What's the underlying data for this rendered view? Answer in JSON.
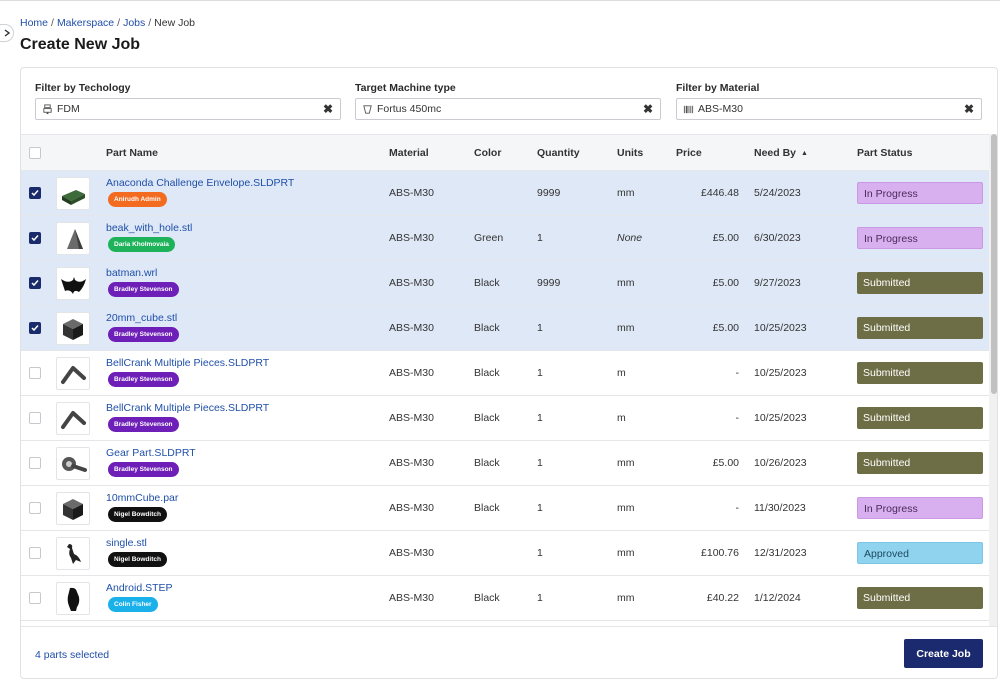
{
  "breadcrumb": {
    "home": "Home",
    "makerspace": "Makerspace",
    "jobs": "Jobs",
    "current": "New Job",
    "sep": "/"
  },
  "title": "Create New Job",
  "filters": [
    {
      "label": "Filter by Techology",
      "value": "FDM",
      "icon": "technology-icon"
    },
    {
      "label": "Target Machine type",
      "value": "Fortus 450mc",
      "icon": "machine-icon"
    },
    {
      "label": "Filter by Material",
      "value": "ABS-M30",
      "icon": "material-barcode-icon"
    }
  ],
  "clear_glyph": "✖",
  "columns": {
    "part_name": "Part Name",
    "material": "Material",
    "color": "Color",
    "quantity": "Quantity",
    "units": "Units",
    "price": "Price",
    "need_by": "Need By",
    "part_status": "Part Status"
  },
  "sort_arrow": "▲",
  "rows": [
    {
      "name": "Anaconda Challenge Envelope.SLDPRT",
      "owner": "Anirudh Admin",
      "owner_color": "#f26b21",
      "material": "ABS-M30",
      "color": "",
      "quantity": "9999",
      "units": "mm",
      "price": "£446.48",
      "need_by": "5/24/2023",
      "status": "In Progress",
      "status_type": "progress",
      "selected": true,
      "thumb": "envelope-thumb-icon"
    },
    {
      "name": "beak_with_hole.stl",
      "owner": "Daria Kholmovaia",
      "owner_color": "#1eb35a",
      "material": "ABS-M30",
      "color": "Green",
      "quantity": "1",
      "units": "None",
      "price": "£5.00",
      "need_by": "6/30/2023",
      "status": "In Progress",
      "status_type": "progress",
      "selected": true,
      "thumb": "beak-thumb-icon"
    },
    {
      "name": "batman.wrl",
      "owner": "Bradley Stevenson",
      "owner_color": "#6d1fb8",
      "material": "ABS-M30",
      "color": "Black",
      "quantity": "9999",
      "units": "mm",
      "price": "£5.00",
      "need_by": "9/27/2023",
      "status": "Submitted",
      "status_type": "submitted",
      "selected": true,
      "thumb": "batman-thumb-icon"
    },
    {
      "name": "20mm_cube.stl",
      "owner": "Bradley Stevenson",
      "owner_color": "#6d1fb8",
      "material": "ABS-M30",
      "color": "Black",
      "quantity": "1",
      "units": "mm",
      "price": "£5.00",
      "need_by": "10/25/2023",
      "status": "Submitted",
      "status_type": "submitted",
      "selected": true,
      "thumb": "cube-thumb-icon"
    },
    {
      "name": "BellCrank Multiple Pieces.SLDPRT",
      "owner": "Bradley Stevenson",
      "owner_color": "#6d1fb8",
      "material": "ABS-M30",
      "color": "Black",
      "quantity": "1",
      "units": "m",
      "price": "-",
      "need_by": "10/25/2023",
      "status": "Submitted",
      "status_type": "submitted",
      "selected": false,
      "thumb": "bellcrank-thumb-icon"
    },
    {
      "name": "BellCrank Multiple Pieces.SLDPRT",
      "owner": "Bradley Stevenson",
      "owner_color": "#6d1fb8",
      "material": "ABS-M30",
      "color": "Black",
      "quantity": "1",
      "units": "m",
      "price": "-",
      "need_by": "10/25/2023",
      "status": "Submitted",
      "status_type": "submitted",
      "selected": false,
      "thumb": "bellcrank-thumb-icon"
    },
    {
      "name": "Gear Part.SLDPRT",
      "owner": "Bradley Stevenson",
      "owner_color": "#6d1fb8",
      "material": "ABS-M30",
      "color": "Black",
      "quantity": "1",
      "units": "mm",
      "price": "£5.00",
      "need_by": "10/26/2023",
      "status": "Submitted",
      "status_type": "submitted",
      "selected": false,
      "thumb": "gear-thumb-icon"
    },
    {
      "name": "10mmCube.par",
      "owner": "Nigel Bowditch",
      "owner_color": "#111111",
      "material": "ABS-M30",
      "color": "Black",
      "quantity": "1",
      "units": "mm",
      "price": "-",
      "need_by": "11/30/2023",
      "status": "In Progress",
      "status_type": "progress",
      "selected": false,
      "thumb": "cube-thumb-icon"
    },
    {
      "name": "single.stl",
      "owner": "Nigel Bowditch",
      "owner_color": "#111111",
      "material": "ABS-M30",
      "color": "",
      "quantity": "1",
      "units": "mm",
      "price": "£100.76",
      "need_by": "12/31/2023",
      "status": "Approved",
      "status_type": "approved",
      "selected": false,
      "thumb": "bird-thumb-icon"
    },
    {
      "name": "Android.STEP",
      "owner": "Colin Fisher",
      "owner_color": "#1ab0ea",
      "material": "ABS-M30",
      "color": "Black",
      "quantity": "1",
      "units": "mm",
      "price": "£40.22",
      "need_by": "1/12/2024",
      "status": "Submitted",
      "status_type": "submitted",
      "selected": false,
      "thumb": "android-thumb-icon"
    }
  ],
  "footer": {
    "selected_text": "4 parts selected",
    "create_label": "Create Job"
  }
}
